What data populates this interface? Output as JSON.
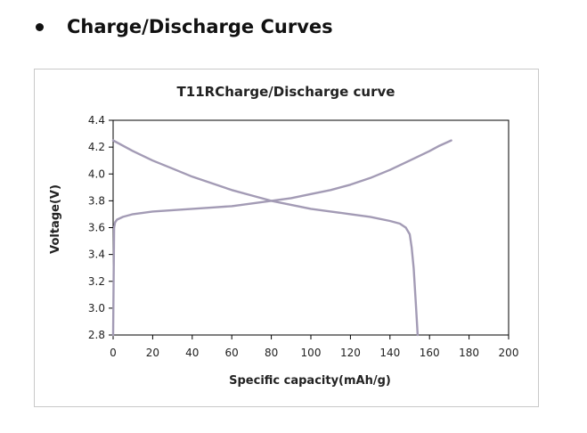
{
  "heading": {
    "text": "Charge/Discharge Curves"
  },
  "chart_data": {
    "type": "line",
    "title": "T11RCharge/Discharge curve",
    "xlabel": "Specific capacity(mAh/g)",
    "ylabel": "Voltage(V)",
    "xlim": [
      0,
      200
    ],
    "ylim": [
      2.8,
      4.4
    ],
    "xticks": [
      0,
      20,
      40,
      60,
      80,
      100,
      120,
      140,
      160,
      180,
      200
    ],
    "yticks": [
      "2.8",
      "3.0",
      "3.2",
      "3.4",
      "3.6",
      "3.8",
      "4.0",
      "4.2",
      "4.4"
    ],
    "grid": false,
    "legend": "none",
    "line_color": "#a39bb5",
    "series": [
      {
        "x": [
          0,
          0.5,
          1,
          2,
          5,
          10,
          20,
          30,
          40,
          50,
          60,
          70,
          80,
          90,
          100,
          110,
          120,
          130,
          140,
          150,
          160,
          165,
          171
        ],
        "y": [
          2.8,
          3.6,
          3.64,
          3.66,
          3.68,
          3.7,
          3.72,
          3.73,
          3.74,
          3.75,
          3.76,
          3.78,
          3.8,
          3.82,
          3.85,
          3.88,
          3.92,
          3.97,
          4.03,
          4.1,
          4.17,
          4.21,
          4.25
        ]
      },
      {
        "x": [
          0,
          10,
          20,
          30,
          40,
          50,
          60,
          70,
          80,
          90,
          100,
          110,
          120,
          130,
          140,
          145,
          148,
          150,
          151,
          152,
          153,
          154
        ],
        "y": [
          4.25,
          4.17,
          4.1,
          4.04,
          3.98,
          3.93,
          3.88,
          3.84,
          3.8,
          3.77,
          3.74,
          3.72,
          3.7,
          3.68,
          3.65,
          3.63,
          3.6,
          3.55,
          3.45,
          3.3,
          3.05,
          2.8
        ]
      }
    ]
  }
}
